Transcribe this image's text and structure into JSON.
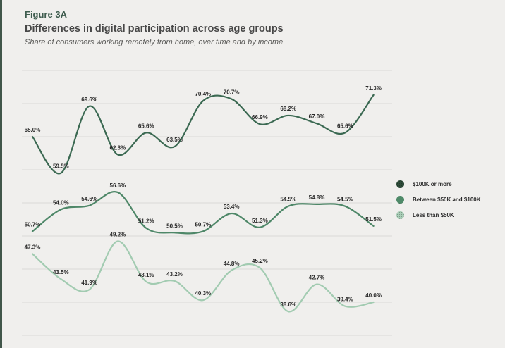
{
  "chart_data": {
    "type": "line",
    "figure_label": "Figure 3A",
    "title": "Differences in digital participation across age groups",
    "subtitle": "Share of consumers working remotely from home, over time and by income",
    "unit": "%",
    "x_axis": {
      "points": 13,
      "tick_labels_visible": false
    },
    "ylim": [
      35,
      75
    ],
    "gridlines": {
      "show": true,
      "interval": 5,
      "color": "#dad9d7"
    },
    "legend_position": "right",
    "data_labels": {
      "show": true,
      "format": "{value}%"
    },
    "series": [
      {
        "name": "$100K or more",
        "line_color": "#3b6952",
        "legend_color": "#2d4b39",
        "values": [
          65.0,
          59.5,
          69.6,
          62.3,
          65.6,
          63.5,
          70.4,
          70.7,
          66.9,
          68.2,
          67.0,
          65.6,
          71.3
        ]
      },
      {
        "name": "Between $50K and $100K",
        "line_color": "#4e8768",
        "legend_color": "#4f8a69",
        "values": [
          50.7,
          54.0,
          54.6,
          56.6,
          51.2,
          50.5,
          50.7,
          53.4,
          51.3,
          54.5,
          54.8,
          54.5,
          51.5
        ]
      },
      {
        "name": "Less than $50K",
        "line_color": "#a2cbb1",
        "legend_color": "#a9ceb7",
        "values": [
          47.3,
          43.5,
          41.9,
          49.2,
          43.1,
          43.2,
          40.3,
          44.8,
          45.2,
          38.6,
          42.7,
          39.4,
          40.0
        ]
      }
    ]
  },
  "colors": {
    "background": "#f0efed",
    "left_bar": "#41564a",
    "grid": "#dad9d7",
    "data_label_text": "#282828",
    "figure_label_text": "#3e5c4e",
    "title_text": "#474747",
    "subtitle_text": "#5a5a58"
  }
}
